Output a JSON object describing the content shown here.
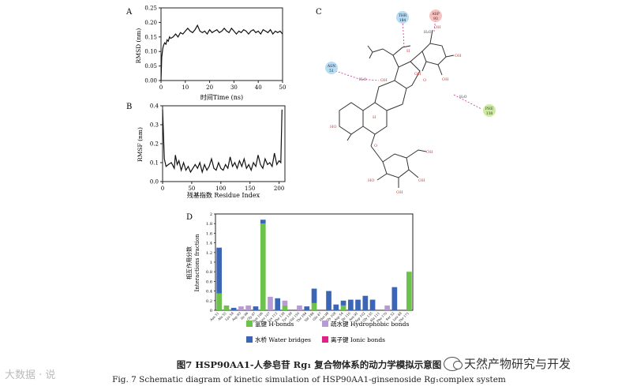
{
  "panel_letters": [
    "A",
    "B",
    "C",
    "D"
  ],
  "chart_data": [
    {
      "panel": "A",
      "type": "line",
      "xlabel": "时间Time (ns)",
      "ylabel": "RMSD (nm)",
      "xlim": [
        0,
        50
      ],
      "ylim": [
        0,
        0.25
      ],
      "xticks": [
        "0",
        "10",
        "20",
        "30",
        "40",
        "50"
      ],
      "yticks": [
        "0.00",
        "0.05",
        "0.10",
        "0.15",
        "0.20",
        "0.25"
      ],
      "series": [
        {
          "x": [
            0,
            0.3,
            0.7,
            1,
            1.5,
            2,
            2.5,
            3,
            3.5,
            4,
            5,
            6,
            7,
            8,
            9,
            10,
            11,
            12,
            13,
            14,
            15,
            16,
            17,
            18,
            19,
            20,
            21,
            22,
            23,
            24,
            25,
            26,
            27,
            28,
            29,
            30,
            31,
            32,
            33,
            34,
            35,
            36,
            37,
            38,
            39,
            40,
            41,
            42,
            43,
            44,
            45,
            46,
            47,
            48,
            49,
            50
          ],
          "y": [
            0.0,
            0.08,
            0.11,
            0.12,
            0.13,
            0.125,
            0.14,
            0.135,
            0.15,
            0.145,
            0.15,
            0.16,
            0.15,
            0.165,
            0.16,
            0.17,
            0.18,
            0.17,
            0.165,
            0.175,
            0.19,
            0.17,
            0.165,
            0.17,
            0.16,
            0.175,
            0.165,
            0.17,
            0.175,
            0.165,
            0.17,
            0.18,
            0.17,
            0.165,
            0.18,
            0.17,
            0.16,
            0.17,
            0.165,
            0.175,
            0.17,
            0.16,
            0.17,
            0.175,
            0.165,
            0.17,
            0.16,
            0.175,
            0.17,
            0.165,
            0.175,
            0.16,
            0.17,
            0.165,
            0.17,
            0.16
          ]
        }
      ]
    },
    {
      "panel": "B",
      "type": "line",
      "xlabel": "残基指数 Residue Index",
      "ylabel": "RMSF (nm)",
      "xlim": [
        0,
        210
      ],
      "ylim": [
        0,
        0.4
      ],
      "xticks": [
        "0",
        "50",
        "100",
        "150",
        "200"
      ],
      "yticks": [
        "0.0",
        "0.1",
        "0.2",
        "0.3",
        "0.4"
      ],
      "series": [
        {
          "x": [
            0,
            3,
            6,
            10,
            15,
            20,
            22,
            25,
            28,
            32,
            36,
            40,
            44,
            48,
            52,
            56,
            60,
            64,
            68,
            72,
            76,
            80,
            84,
            88,
            92,
            96,
            100,
            104,
            108,
            112,
            116,
            120,
            124,
            128,
            132,
            136,
            140,
            144,
            148,
            152,
            156,
            160,
            164,
            168,
            172,
            176,
            180,
            184,
            188,
            192,
            196,
            200,
            203,
            205
          ],
          "y": [
            0.38,
            0.12,
            0.08,
            0.09,
            0.1,
            0.07,
            0.14,
            0.09,
            0.11,
            0.06,
            0.1,
            0.06,
            0.08,
            0.05,
            0.07,
            0.09,
            0.07,
            0.1,
            0.05,
            0.09,
            0.06,
            0.08,
            0.12,
            0.07,
            0.06,
            0.1,
            0.07,
            0.06,
            0.09,
            0.07,
            0.13,
            0.08,
            0.1,
            0.07,
            0.11,
            0.08,
            0.12,
            0.07,
            0.09,
            0.06,
            0.1,
            0.08,
            0.14,
            0.09,
            0.07,
            0.12,
            0.09,
            0.1,
            0.08,
            0.15,
            0.09,
            0.11,
            0.1,
            0.38
          ]
        }
      ]
    },
    {
      "panel": "D",
      "type": "bar",
      "ylabel_cn": "相互作用分数",
      "ylabel_en": "Interactions fraction",
      "ylim": [
        0,
        2
      ],
      "yticks": [
        "0",
        "0.2",
        "0.4",
        "0.6",
        "0.8",
        "1",
        "1.2",
        "1.4",
        "1.6",
        "1.8",
        "2"
      ],
      "categories": [
        "Asn 51",
        "Ala 55",
        "Lys 58",
        "Asp 93",
        "Ile 96",
        "Gly 97",
        "Asn 106",
        "Leu 107",
        "Lys 112",
        "Phe 138",
        "Tyr 139",
        "Val 150",
        "Thr 184",
        "Val 186",
        "Glu 47",
        "Met 98",
        "Gly 108",
        "Asp 54",
        "Ile 110",
        "Asn 92",
        "Asp 102",
        "Gly 135",
        "Ala 111",
        "Phe 170",
        "Ser 52",
        "Leu 48",
        "Thr 171"
      ],
      "series": [
        {
          "name": "氢键 H-bonds",
          "color": "#6cc24a",
          "values": [
            0.35,
            0.1,
            0.0,
            0.0,
            0.0,
            0.0,
            1.8,
            0.0,
            0.0,
            0.1,
            0.0,
            0.0,
            0.0,
            0.15,
            0.0,
            0.0,
            0.0,
            0.1,
            0.0,
            0.0,
            0.0,
            0.0,
            0.0,
            0.0,
            0.0,
            0.0,
            0.8
          ]
        },
        {
          "name": "疏水键 Hydrophobic bonds",
          "color": "#b79ad6",
          "values": [
            0.0,
            0.0,
            0.0,
            0.08,
            0.1,
            0.0,
            0.0,
            0.28,
            0.0,
            0.1,
            0.0,
            0.1,
            0.0,
            0.0,
            0.0,
            0.0,
            0.0,
            0.0,
            0.0,
            0.0,
            0.0,
            0.0,
            0.0,
            0.1,
            0.0,
            0.0,
            0.0
          ]
        },
        {
          "name": "水桥 Water bridges",
          "color": "#3b66b5",
          "values": [
            0.95,
            0.0,
            0.05,
            0.0,
            0.0,
            0.08,
            0.08,
            0.0,
            0.25,
            0.0,
            0.0,
            0.0,
            0.08,
            0.3,
            0.0,
            0.4,
            0.12,
            0.1,
            0.22,
            0.22,
            0.3,
            0.22,
            0.0,
            0.0,
            0.48,
            0.0,
            0.0
          ]
        },
        {
          "name": "离子键 Ionic bonds",
          "color": "#e0218a",
          "values": [
            0,
            0,
            0,
            0,
            0,
            0,
            0,
            0,
            0,
            0,
            0,
            0,
            0,
            0,
            0,
            0,
            0,
            0,
            0,
            0,
            0,
            0,
            0,
            0,
            0,
            0,
            0
          ]
        }
      ]
    }
  ],
  "structure_c": {
    "residues": [
      {
        "label": "THR\n184",
        "color": "#a8d8f0"
      },
      {
        "label": "ASP\n93",
        "color": "#f5b6b6"
      },
      {
        "label": "ASN\n51",
        "color": "#a8d8f0"
      },
      {
        "label": "PHE\n138",
        "color": "#c8e890"
      }
    ]
  },
  "caption": {
    "cn": "图7  HSP90AA1-人参皂苷 Rg₁ 复合物体系的动力学模拟示意图",
    "en": "Fig. 7   Schematic diagram of kinetic simulation of HSP90AA1-ginsenoside Rg₁complex system"
  },
  "watermark_left": "大数据 · 说",
  "watermark_right": "天然产物研究与开发"
}
